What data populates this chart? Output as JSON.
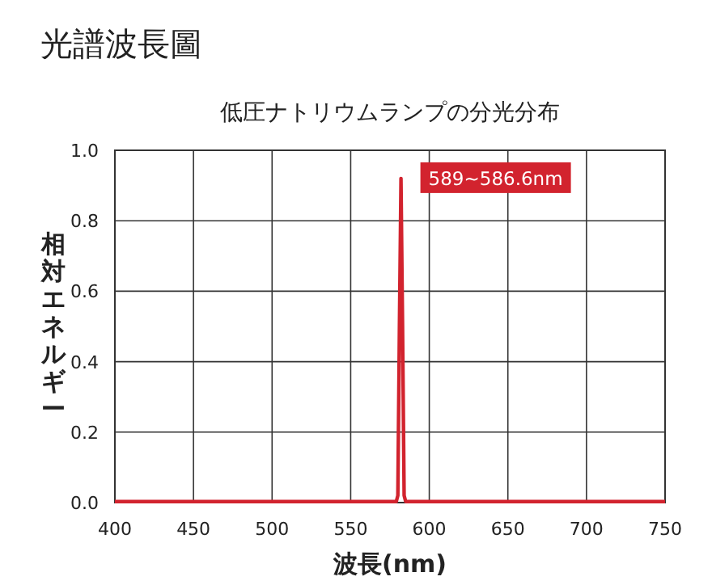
{
  "chart_data": {
    "type": "line",
    "title": "光譜波長圖",
    "subtitle": "低圧ナトリウムランプの分光分布",
    "xlabel": "波長(nm)",
    "ylabel": "相対エネルギー",
    "x": [
      400,
      500,
      579,
      580,
      581,
      582,
      583,
      584,
      585,
      650,
      750
    ],
    "series": [
      {
        "color": "#d2232e",
        "values": [
          0.003,
          0.003,
          0.003,
          0.02,
          0.5,
          0.92,
          0.5,
          0.02,
          0.003,
          0.003,
          0.003
        ]
      }
    ],
    "xlim": [
      400,
      750
    ],
    "xticks": [
      400,
      450,
      500,
      550,
      600,
      650,
      700,
      750
    ],
    "ylim": [
      0,
      1
    ],
    "yticks": [
      {
        "value": 0,
        "label": "0.0"
      },
      0.2,
      0.4,
      0.6,
      0.8,
      {
        "value": 1,
        "label": "1.0"
      }
    ],
    "grid": true,
    "marker": "none",
    "line_style": "solid",
    "annotations": [
      {
        "text": "589~586.6nm",
        "x": 582,
        "y": 0.92
      }
    ]
  }
}
